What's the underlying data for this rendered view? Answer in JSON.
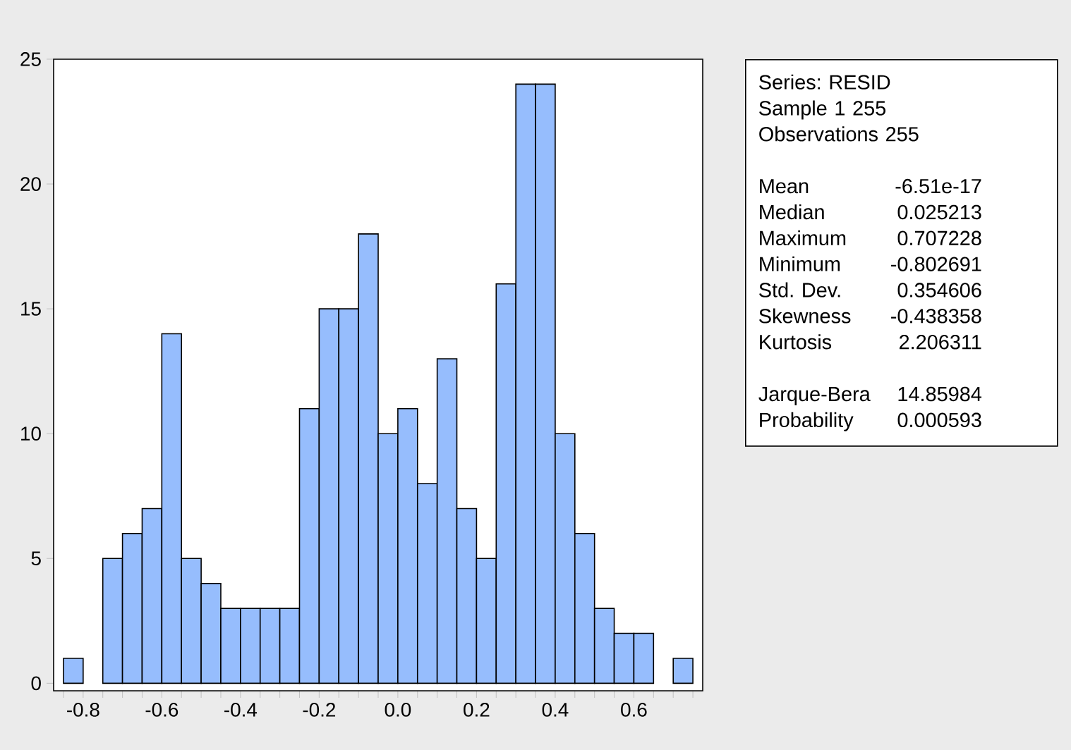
{
  "chart_data": {
    "type": "histogram",
    "bins": [
      -0.85,
      -0.8,
      -0.75,
      -0.7,
      -0.65,
      -0.6,
      -0.55,
      -0.5,
      -0.45,
      -0.4,
      -0.35,
      -0.3,
      -0.25,
      -0.2,
      -0.15,
      -0.1,
      -0.05,
      0.0,
      0.05,
      0.1,
      0.15,
      0.2,
      0.25,
      0.3,
      0.35,
      0.4,
      0.45,
      0.5,
      0.55,
      0.6,
      0.65,
      0.7,
      0.75
    ],
    "values": [
      1,
      0,
      5,
      6,
      7,
      14,
      5,
      4,
      3,
      3,
      3,
      3,
      11,
      15,
      15,
      18,
      10,
      11,
      8,
      13,
      7,
      5,
      16,
      24,
      24,
      10,
      6,
      3,
      2,
      2,
      0,
      1
    ],
    "color": "#96bdfd",
    "xlim": [
      -0.875,
      0.775
    ],
    "ylim": [
      -0.3,
      25
    ],
    "xticks": [
      {
        "value": -0.85,
        "label": null
      },
      {
        "value": -0.8,
        "label": "-0.8"
      },
      {
        "value": -0.75,
        "label": null
      },
      {
        "value": -0.7,
        "label": null
      },
      {
        "value": -0.65,
        "label": null
      },
      {
        "value": -0.6,
        "label": "-0.6"
      },
      {
        "value": -0.55,
        "label": null
      },
      {
        "value": -0.5,
        "label": null
      },
      {
        "value": -0.45,
        "label": null
      },
      {
        "value": -0.4,
        "label": "-0.4"
      },
      {
        "value": -0.35,
        "label": null
      },
      {
        "value": -0.3,
        "label": null
      },
      {
        "value": -0.25,
        "label": null
      },
      {
        "value": -0.2,
        "label": "-0.2"
      },
      {
        "value": -0.15,
        "label": null
      },
      {
        "value": -0.1,
        "label": null
      },
      {
        "value": -0.05,
        "label": null
      },
      {
        "value": 0.0,
        "label": "0.0"
      },
      {
        "value": 0.05,
        "label": null
      },
      {
        "value": 0.1,
        "label": null
      },
      {
        "value": 0.15,
        "label": null
      },
      {
        "value": 0.2,
        "label": "0.2"
      },
      {
        "value": 0.25,
        "label": null
      },
      {
        "value": 0.3,
        "label": null
      },
      {
        "value": 0.35,
        "label": null
      },
      {
        "value": 0.4,
        "label": "0.4"
      },
      {
        "value": 0.45,
        "label": null
      },
      {
        "value": 0.5,
        "label": null
      },
      {
        "value": 0.55,
        "label": null
      },
      {
        "value": 0.6,
        "label": "0.6"
      },
      {
        "value": 0.65,
        "label": null
      },
      {
        "value": 0.7,
        "label": null
      },
      {
        "value": 0.75,
        "label": null
      }
    ],
    "yticks": [
      0,
      5,
      10,
      15,
      20,
      25
    ],
    "grid": false,
    "annotations": [
      "Series: RESID",
      "Sample 1 255",
      "Observations 255",
      "Mean",
      "-6.51e-17",
      "Median",
      "0.025213",
      "Maximum",
      "0.707228",
      "Minimum",
      "-0.802691",
      "Std. Dev.",
      "0.354606",
      "Skewness",
      "-0.438358",
      "Kurtosis",
      "2.206311",
      "Jarque-Bera",
      "14.85984",
      "Probability",
      "0.000593"
    ]
  }
}
